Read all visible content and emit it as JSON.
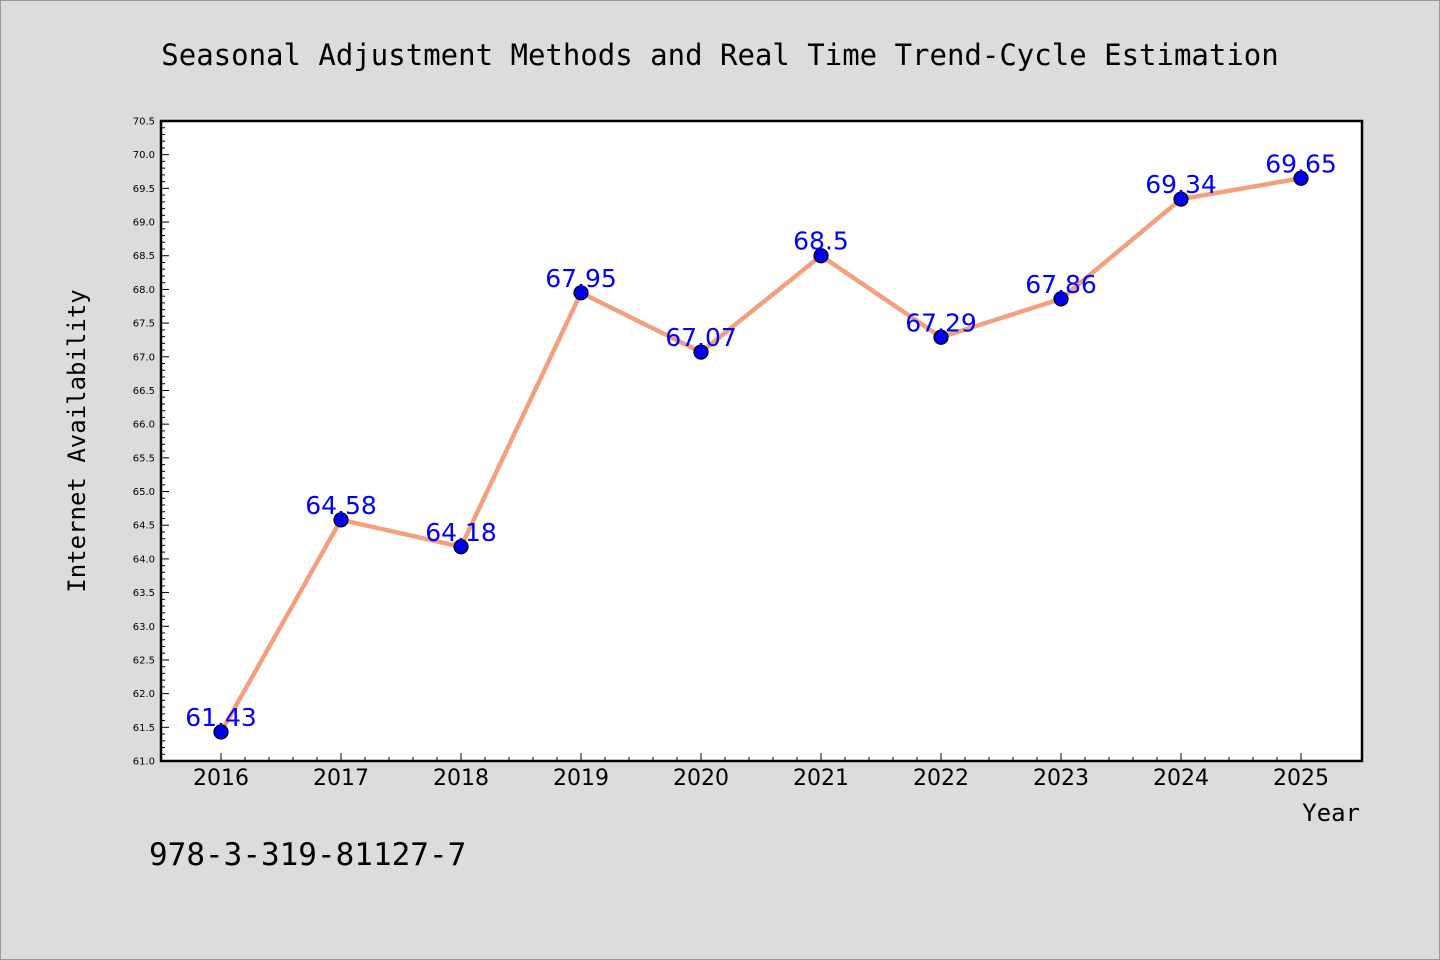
{
  "footer_code": "978-3-319-81127-7",
  "colors": {
    "background": "#dcdcdc",
    "plot_background": "#ffffff",
    "line": "#f4a07e",
    "marker": "#0000ee",
    "data_label": "#0000ff"
  },
  "chart_data": {
    "type": "line",
    "title": "Seasonal Adjustment Methods and Real Time Trend-Cycle Estimation",
    "xlabel": "Year",
    "ylabel": "Internet Availability",
    "categories": [
      "2016",
      "2017",
      "2018",
      "2019",
      "2020",
      "2021",
      "2022",
      "2023",
      "2024",
      "2025"
    ],
    "values": [
      61.43,
      64.58,
      64.18,
      67.95,
      67.07,
      68.5,
      67.29,
      67.86,
      69.34,
      69.65
    ],
    "data_labels": [
      "61.43",
      "64.58",
      "64.18",
      "67.95",
      "67.07",
      "68.5",
      "67.29",
      "67.86",
      "69.34",
      "69.65"
    ],
    "ylim": [
      61.0,
      70.5
    ],
    "yticks": [
      "61.0",
      "61.5",
      "62.0",
      "62.5",
      "63.0",
      "63.5",
      "64.0",
      "64.5",
      "65.0",
      "65.5",
      "66.0",
      "66.5",
      "67.0",
      "67.5",
      "68.0",
      "68.5",
      "69.0",
      "69.5",
      "70.0",
      "70.5"
    ],
    "grid": false,
    "legend": "none"
  }
}
